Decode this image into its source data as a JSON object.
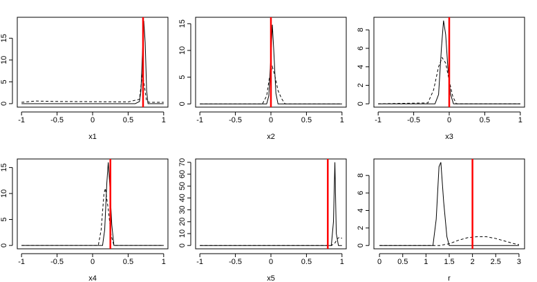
{
  "chart_data": [
    {
      "type": "line",
      "x_label": "x1",
      "xlim": [
        -1.06,
        1.06
      ],
      "xticks": [
        -1.0,
        -0.5,
        0.0,
        0.5,
        1.0
      ],
      "ylim": [
        -0.8,
        19.8
      ],
      "yticks": [
        0,
        5,
        10,
        15
      ],
      "series": [
        {
          "color": "#000000",
          "dash": false,
          "x": [
            -1,
            0.6,
            0.66,
            0.68,
            0.7,
            0.72,
            0.74,
            0.76,
            0.78,
            1
          ],
          "values": [
            0,
            0,
            0.5,
            3,
            11,
            19,
            14,
            3,
            0,
            0
          ]
        },
        {
          "color": "#000000",
          "dash": true,
          "x": [
            -1,
            -0.8,
            -0.5,
            0,
            0.5,
            0.66,
            0.7,
            0.72,
            0.76,
            0.8,
            1
          ],
          "values": [
            0.3,
            0.6,
            0.5,
            0.45,
            0.4,
            1,
            7,
            5,
            0.5,
            0.3,
            0.3
          ]
        }
      ],
      "vline": {
        "value": 0.71,
        "color": "#ff0000"
      }
    },
    {
      "type": "line",
      "x_label": "x2",
      "xlim": [
        -1.06,
        1.06
      ],
      "xticks": [
        -1.0,
        -0.5,
        0.0,
        0.5,
        1.0
      ],
      "ylim": [
        -0.6,
        16.2
      ],
      "yticks": [
        0,
        5,
        10,
        15
      ],
      "series": [
        {
          "color": "#000000",
          "dash": false,
          "x": [
            -1,
            -0.06,
            -0.03,
            0,
            0.02,
            0.04,
            0.07,
            0.1,
            1
          ],
          "values": [
            0,
            0,
            1.5,
            9,
            14.8,
            10,
            2,
            0,
            0
          ]
        },
        {
          "color": "#000000",
          "dash": true,
          "x": [
            -1,
            -0.12,
            -0.06,
            -0.02,
            0.02,
            0.06,
            0.1,
            0.15,
            0.2,
            1
          ],
          "values": [
            0,
            0,
            1.5,
            5,
            7,
            5,
            2.5,
            1,
            0,
            0
          ]
        }
      ],
      "vline": {
        "value": 0.0,
        "color": "#ff0000"
      }
    },
    {
      "type": "line",
      "x_label": "x3",
      "xlim": [
        -1.06,
        1.06
      ],
      "xticks": [
        -1.0,
        -0.5,
        0.0,
        0.5,
        1.0
      ],
      "ylim": [
        -0.36,
        9.36
      ],
      "yticks": [
        0,
        2,
        4,
        6,
        8
      ],
      "series": [
        {
          "color": "#000000",
          "dash": false,
          "x": [
            -1,
            -0.2,
            -0.15,
            -0.11,
            -0.08,
            -0.05,
            -0.02,
            0.02,
            0.06,
            1
          ],
          "values": [
            0,
            0,
            1,
            6,
            9,
            7.5,
            4,
            1,
            0,
            0
          ]
        },
        {
          "color": "#000000",
          "dash": true,
          "x": [
            -1,
            -0.3,
            -0.22,
            -0.15,
            -0.1,
            -0.05,
            0,
            0.05,
            0.1,
            1
          ],
          "values": [
            0,
            0.1,
            1.5,
            4,
            5,
            4.4,
            2.5,
            0.8,
            0,
            0
          ]
        }
      ],
      "vline": {
        "value": 0.0,
        "color": "#ff0000"
      }
    },
    {
      "type": "line",
      "x_label": "x4",
      "xlim": [
        -1.06,
        1.06
      ],
      "xticks": [
        -1.0,
        -0.5,
        0.0,
        0.5,
        1.0
      ],
      "ylim": [
        -0.65,
        16.65
      ],
      "yticks": [
        0,
        5,
        10,
        15
      ],
      "series": [
        {
          "color": "#000000",
          "dash": false,
          "x": [
            -1,
            0.14,
            0.17,
            0.2,
            0.22,
            0.24,
            0.27,
            0.3,
            1
          ],
          "values": [
            0,
            0,
            3,
            12,
            16,
            12,
            4,
            0,
            0
          ]
        },
        {
          "color": "#000000",
          "dash": true,
          "x": [
            -1,
            0.08,
            0.12,
            0.16,
            0.18,
            0.22,
            0.26,
            0.3,
            1
          ],
          "values": [
            0,
            0,
            3,
            10,
            11,
            7,
            2,
            0,
            0
          ]
        }
      ],
      "vline": {
        "value": 0.25,
        "color": "#ff0000"
      }
    },
    {
      "type": "line",
      "x_label": "x5",
      "xlim": [
        -1.06,
        1.06
      ],
      "xticks": [
        -1.0,
        -0.5,
        0.0,
        0.5,
        1.0
      ],
      "ylim": [
        -2.8,
        72.8
      ],
      "yticks": [
        0,
        10,
        20,
        30,
        40,
        50,
        60,
        70
      ],
      "series": [
        {
          "color": "#000000",
          "dash": false,
          "x": [
            -1,
            0.85,
            0.88,
            0.9,
            0.92,
            0.95,
            1
          ],
          "values": [
            0,
            0,
            20,
            70,
            10,
            0,
            0
          ]
        },
        {
          "color": "#000000",
          "dash": true,
          "x": [
            -1,
            0.85,
            0.9,
            0.94,
            0.97,
            1
          ],
          "values": [
            0,
            0,
            2,
            6,
            7,
            6
          ]
        }
      ],
      "vline": {
        "value": 0.8,
        "color": "#ff0000"
      }
    },
    {
      "type": "line",
      "x_label": "r",
      "xlim": [
        -0.12,
        3.12
      ],
      "xticks": [
        0.0,
        0.5,
        1.0,
        1.5,
        2.0,
        2.5,
        3.0
      ],
      "ylim": [
        -0.38,
        9.88
      ],
      "yticks": [
        0,
        2,
        4,
        6,
        8
      ],
      "series": [
        {
          "color": "#000000",
          "dash": false,
          "x": [
            0,
            1.15,
            1.22,
            1.28,
            1.32,
            1.38,
            1.45,
            1.5,
            3
          ],
          "values": [
            0,
            0,
            3,
            9,
            9.5,
            5,
            1,
            0,
            0
          ]
        },
        {
          "color": "#000000",
          "dash": true,
          "x": [
            0,
            1.3,
            1.5,
            1.7,
            1.9,
            2.1,
            2.3,
            2.5,
            2.7,
            2.9,
            3
          ],
          "values": [
            0,
            0,
            0.2,
            0.6,
            0.9,
            1.0,
            1.0,
            0.8,
            0.5,
            0.2,
            0.1
          ]
        }
      ],
      "vline": {
        "value": 2.0,
        "color": "#ff0000"
      }
    }
  ]
}
